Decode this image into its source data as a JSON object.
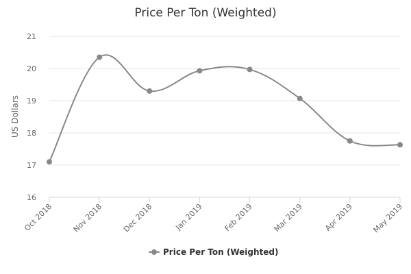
{
  "chart_data": {
    "type": "line",
    "title": "Price Per Ton (Weighted)",
    "ylabel": "US Dollars",
    "xlabel": "",
    "categories": [
      "Oct 2018",
      "Nov 2018",
      "Dec 2018",
      "Jan 2019",
      "Feb 2019",
      "Mar 2019",
      "Apr 2019",
      "May 2019"
    ],
    "series": [
      {
        "name": "Price Per Ton (Weighted)",
        "values": [
          17.1,
          20.35,
          19.3,
          19.93,
          19.97,
          19.07,
          17.75,
          17.63
        ],
        "color": "#888888"
      }
    ],
    "ylim": [
      16,
      21
    ],
    "yticks": [
      "16",
      "17",
      "18",
      "19",
      "20",
      "21"
    ],
    "grid": true,
    "legend_position": "bottom-center",
    "smooth": true
  }
}
